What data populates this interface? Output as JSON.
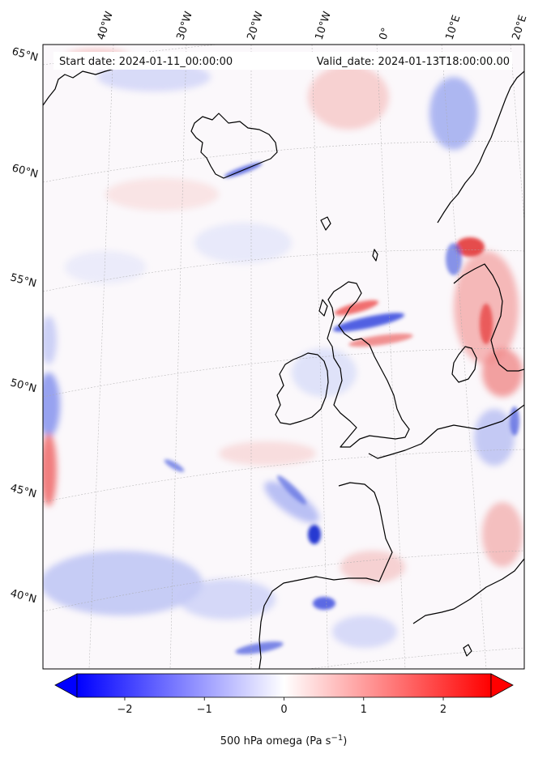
{
  "header": {
    "start_text": "Start date: 2024-01-11_00:00:00",
    "valid_text": "Valid_date: 2024-01-13T18:00:00.00"
  },
  "longitude_labels": [
    "40°W",
    "30°W",
    "20°W",
    "10°W",
    "0°",
    "10°E",
    "20°E"
  ],
  "latitude_labels": [
    "65°N",
    "60°N",
    "55°N",
    "50°N",
    "45°N",
    "40°N"
  ],
  "colorbar": {
    "ticks": [
      {
        "value": -2,
        "label": "−2"
      },
      {
        "value": -1,
        "label": "−1"
      },
      {
        "value": 0,
        "label": "0"
      },
      {
        "value": 1,
        "label": "1"
      },
      {
        "value": 2,
        "label": "2"
      }
    ],
    "vmin": -2.6,
    "vmax": 2.6,
    "low_color": "#0000ff",
    "mid_color": "#ffffff",
    "high_color": "#ff0000",
    "label_text": "500 hPa omega (Pa s",
    "label_exp": "−1",
    "label_close": ")",
    "extend": "both"
  },
  "map": {
    "field": "500 hPa omega",
    "units": "Pa s−1",
    "coastline_color": "#000000",
    "gridline_color": "#aaaaaa"
  }
}
